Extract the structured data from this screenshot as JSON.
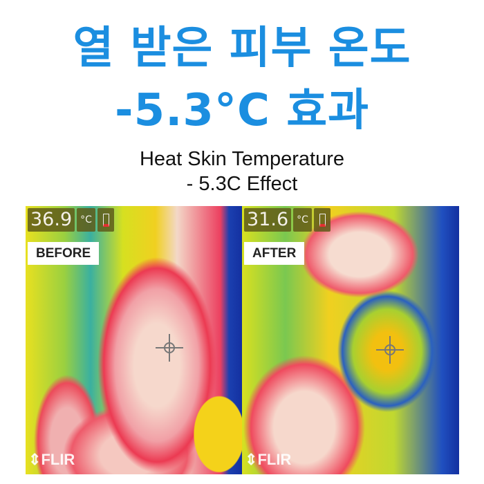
{
  "headline": {
    "line1": "열 받은 피부 온도",
    "line2": "-5.3°C 효과"
  },
  "subtitle": {
    "line1": "Heat Skin Temperature",
    "line2": "- 5.3C Effect"
  },
  "panels": [
    {
      "temperature": "36.9",
      "unit": "°C",
      "label": "BEFORE",
      "brand": "FLIR"
    },
    {
      "temperature": "31.6",
      "unit": "°C",
      "label": "AFTER",
      "brand": "FLIR"
    }
  ],
  "colors": {
    "headline": "#1b8ee0"
  }
}
